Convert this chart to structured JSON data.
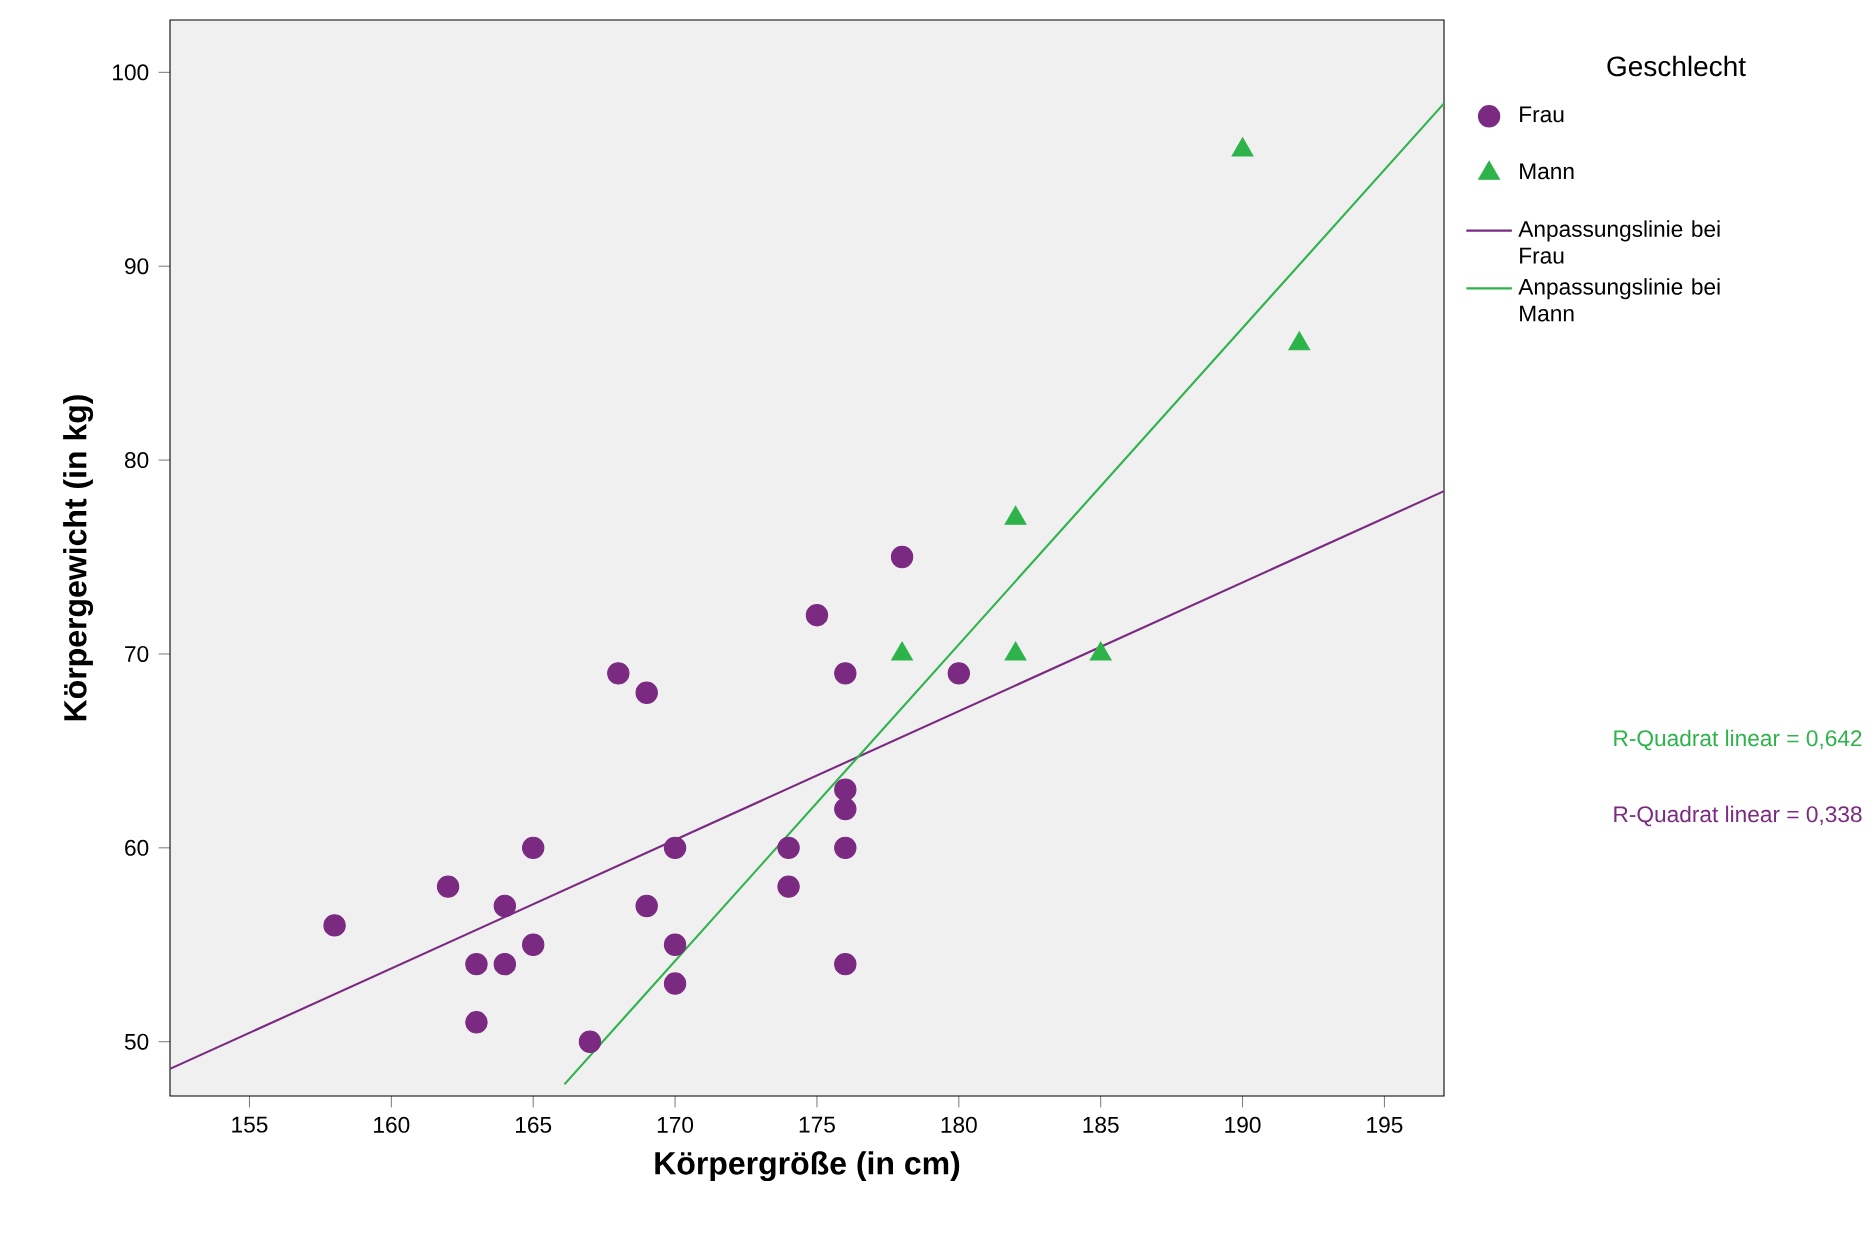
{
  "chart_data": {
    "type": "scatter",
    "xlabel": "Körpergröße (in cm)",
    "ylabel": "Körpergewicht (in kg)",
    "legend_title": "Geschlecht",
    "legend": "right",
    "grid": false,
    "xlim": [
      152.2,
      197.1
    ],
    "ylim": [
      47.2,
      102.7
    ],
    "xticks": [
      155,
      160,
      165,
      170,
      175,
      180,
      185,
      190,
      195
    ],
    "yticks": [
      50,
      60,
      70,
      80,
      90,
      100
    ],
    "series": [
      {
        "name": "Frau",
        "marker": "circle",
        "color": "#7b2a82",
        "x": [
          158,
          162,
          163,
          163,
          164,
          164,
          165,
          165,
          167,
          168,
          169,
          169,
          170,
          170,
          170,
          174,
          174,
          175,
          176,
          176,
          176,
          176,
          176,
          178,
          180
        ],
        "values": [
          56,
          58,
          54,
          51,
          57,
          54,
          60,
          55,
          50,
          69,
          68,
          57,
          60,
          55,
          53,
          60,
          58,
          72,
          69,
          63,
          62,
          60,
          54,
          75,
          69
        ]
      },
      {
        "name": "Mann",
        "marker": "triangle",
        "color": "#2db34a",
        "x": [
          178,
          182,
          182,
          185,
          190,
          192
        ],
        "values": [
          70,
          77,
          70,
          70,
          96,
          86
        ]
      },
      {
        "name": "Anpassungslinie bei Frau",
        "type": "line",
        "marker": "none",
        "color": "#7b2a82",
        "x": [
          152.2,
          197.1
        ],
        "values": [
          48.6,
          78.4
        ]
      },
      {
        "name": "Anpassungslinie bei Mann",
        "type": "line",
        "marker": "none",
        "color": "#2db34a",
        "x": [
          166.1,
          197.1
        ],
        "values": [
          47.8,
          98.4
        ]
      }
    ],
    "annotations": [
      "R-Quadrat linear = 0,642",
      "R-Quadrat linear = 0,338"
    ]
  }
}
